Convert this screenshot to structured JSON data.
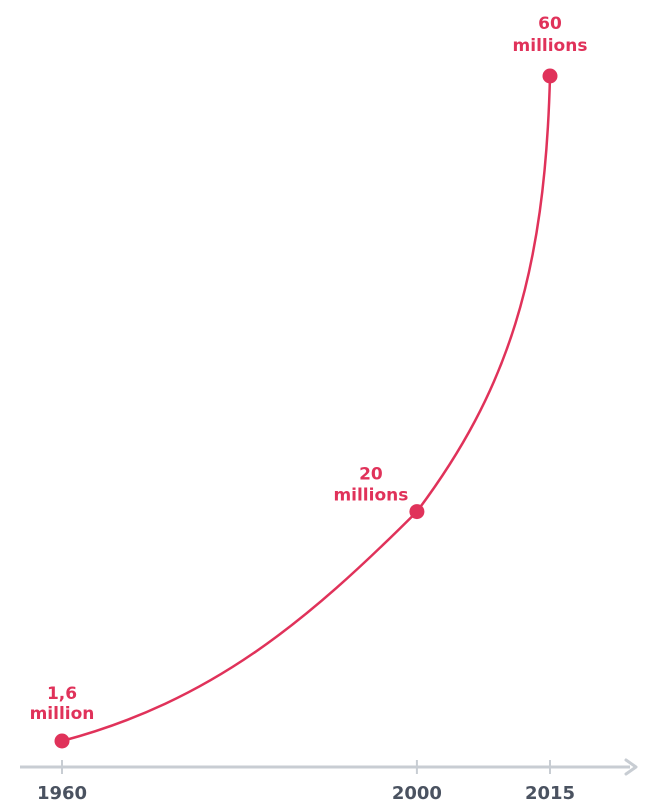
{
  "chart_data": {
    "type": "line",
    "x": [
      1960,
      2000,
      2015
    ],
    "series": [
      {
        "values": [
          1.6,
          20,
          60
        ],
        "point_labels": [
          [
            "1,6",
            "million"
          ],
          [
            "20",
            "millions"
          ],
          [
            "60",
            "millions"
          ]
        ]
      }
    ],
    "x_tick_labels": [
      "1960",
      "2000",
      "2015"
    ],
    "title": "",
    "xlabel": "",
    "ylabel": "",
    "curve": "smooth",
    "grid": false,
    "legend": "none",
    "colors": {
      "series": "#e0325a",
      "axis": "#c8cdd3",
      "tick_text": "#4a5260",
      "background": "#ffffff"
    }
  }
}
